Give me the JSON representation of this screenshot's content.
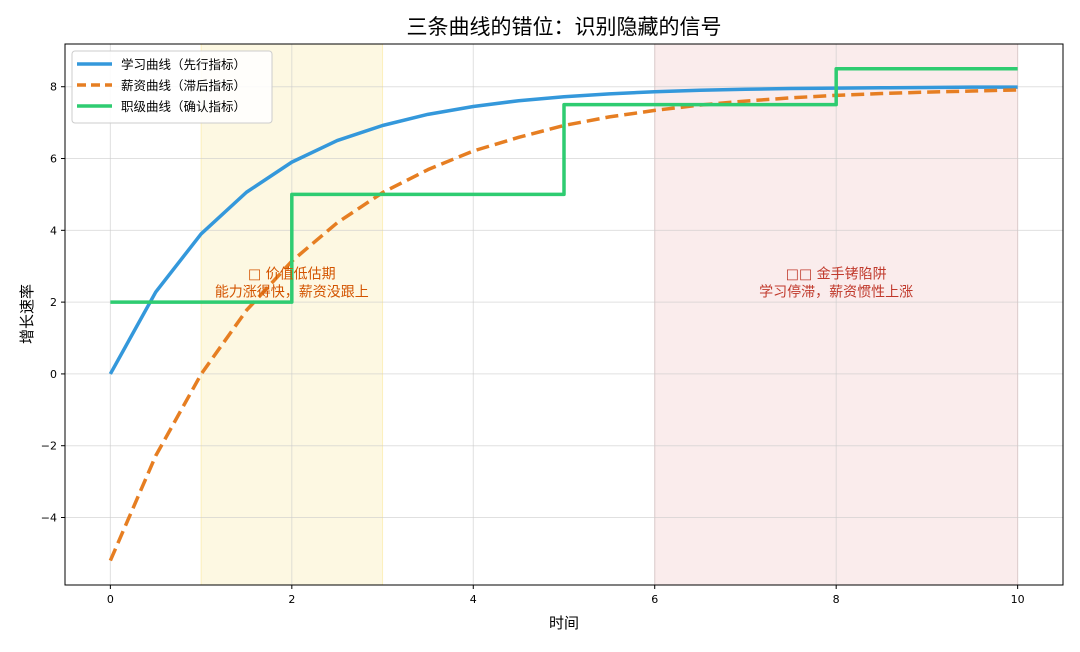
{
  "chart_data": {
    "type": "line",
    "title": "三条曲线的错位：识别隐藏的信号",
    "xlabel": "时间",
    "ylabel": "增长速率",
    "xlim": [
      -0.5,
      10.5
    ],
    "ylim": [
      -5.88,
      9.19
    ],
    "xticks": [
      0,
      2,
      4,
      6,
      8,
      10
    ],
    "yticks": [
      -4,
      -2,
      0,
      2,
      4,
      6,
      8
    ],
    "grid": true,
    "legend_position": "top-left",
    "x": [
      0,
      0.5,
      1,
      1.5,
      2,
      2.5,
      3,
      3.5,
      4,
      4.5,
      5,
      5.5,
      6,
      6.5,
      7,
      7.5,
      8,
      8.5,
      9,
      9.5,
      10
    ],
    "series": [
      {
        "name": "学习曲线（先行指标）",
        "color": "#3498db",
        "style": "solid",
        "values": [
          0,
          2.28,
          3.9,
          5.06,
          5.9,
          6.5,
          6.92,
          7.23,
          7.45,
          7.61,
          7.72,
          7.8,
          7.86,
          7.9,
          7.93,
          7.95,
          7.96,
          7.97,
          7.98,
          7.99,
          7.99
        ]
      },
      {
        "name": "薪资曲线（滞后指标）",
        "color": "#e67e22",
        "style": "dashed",
        "values": [
          -5.2,
          -2.28,
          -0.01,
          1.77,
          3.14,
          4.21,
          5.05,
          5.69,
          6.21,
          6.59,
          6.92,
          7.16,
          7.34,
          7.49,
          7.6,
          7.69,
          7.76,
          7.81,
          7.85,
          7.88,
          7.91
        ]
      },
      {
        "name": "职级曲线（确认指标）",
        "color": "#2ecc71",
        "style": "step",
        "steps": [
          {
            "x0": 0,
            "x1": 2,
            "y": 2
          },
          {
            "x0": 2,
            "x1": 5,
            "y": 5
          },
          {
            "x0": 5,
            "x1": 8,
            "y": 7.5
          },
          {
            "x0": 8,
            "x1": 10,
            "y": 8.5
          }
        ]
      }
    ],
    "regions": [
      {
        "x0": 1,
        "x1": 3,
        "color": "#f7dc6f",
        "label_line1": "□ 价值低估期",
        "label_line2": "能力涨得快，薪资没跟上",
        "text_color": "#d35400",
        "label_x": 2,
        "label_y": 2.3
      },
      {
        "x0": 6,
        "x1": 10,
        "color": "#e6a0a0",
        "label_line1": "□□ 金手铐陷阱",
        "label_line2": "学习停滞，薪资惯性上涨",
        "text_color": "#c0392b",
        "label_x": 8,
        "label_y": 2.3
      }
    ]
  }
}
